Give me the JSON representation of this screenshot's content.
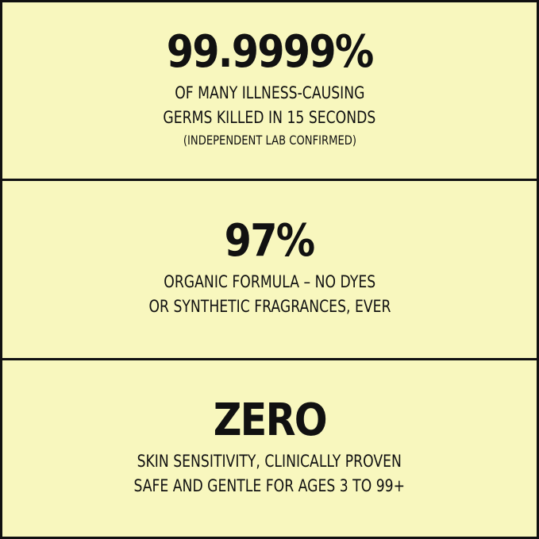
{
  "sections": [
    {
      "headline": "99.9999%",
      "lines": [
        "OF MANY ILLNESS-CAUSING",
        "GERMS KILLED IN 15 SECONDS"
      ],
      "note": "(INDEPENDENT LAB CONFIRMED)"
    },
    {
      "headline": "97%",
      "lines": [
        "ORGANIC FORMULA – NO DYES",
        "OR SYNTHETIC FRAGRANCES, EVER"
      ]
    },
    {
      "headline": "ZERO",
      "lines": [
        "SKIN SENSITIVITY, CLINICALLY PROVEN",
        "SAFE AND GENTLE FOR  AGES 3 TO 99+"
      ]
    }
  ],
  "colors": {
    "background": "#f8f7be",
    "text": "#111111"
  }
}
